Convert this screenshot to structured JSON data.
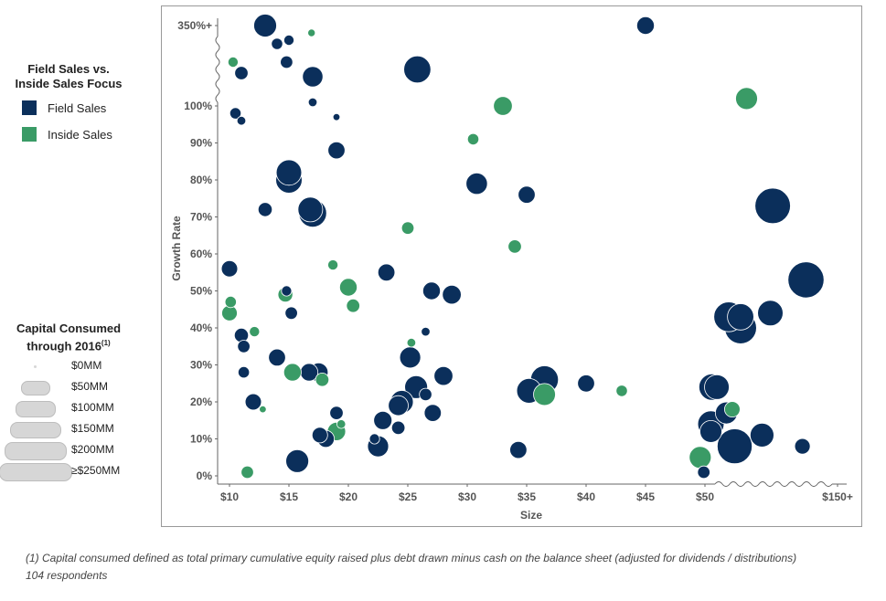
{
  "legend": {
    "color_title_1": "Field Sales vs.",
    "color_title_2": "Inside Sales Focus",
    "field_label": "Field Sales",
    "inside_label": "Inside Sales",
    "size_title_1": "Capital Consumed",
    "size_title_2": "through 2016",
    "size_title_sup": "(1)",
    "size_labels": [
      "$0MM",
      "$50MM",
      "$100MM",
      "$150MM",
      "$200MM",
      "≥$250MM"
    ]
  },
  "colors": {
    "field": "#0b2f5b",
    "inside": "#3a9b66",
    "size_legend": "#d6d6d6"
  },
  "footnote": {
    "line1": "(1)    Capital consumed defined as total primary cumulative equity raised plus debt drawn minus cash on the balance sheet (adjusted for dividends / distributions)",
    "line2": "104 respondents"
  },
  "chart_data": {
    "type": "scatter",
    "xlabel": "Size",
    "ylabel": "Growth Rate",
    "x_ticks": [
      "$10",
      "$15",
      "$20",
      "$25",
      "$30",
      "$35",
      "$40",
      "$45",
      "$50",
      "$150+"
    ],
    "y_ticks": [
      "0%",
      "10%",
      "20%",
      "30%",
      "40%",
      "50%",
      "60%",
      "70%",
      "80%",
      "90%",
      "100%",
      "350%+"
    ],
    "series": [
      {
        "name": "Field Sales",
        "points": [
          [
            13,
            350,
            110
          ],
          [
            45,
            350,
            60
          ],
          [
            14,
            345,
            20
          ],
          [
            15,
            346,
            15
          ],
          [
            14.8,
            340,
            25
          ],
          [
            11,
            337,
            30
          ],
          [
            17,
            336,
            85
          ],
          [
            25.8,
            338,
            160
          ],
          [
            17,
            101,
            10
          ],
          [
            19,
            97,
            5
          ],
          [
            10.5,
            98,
            20
          ],
          [
            11,
            96,
            10
          ],
          [
            19,
            88,
            55
          ],
          [
            15,
            82,
            140
          ],
          [
            15,
            80,
            150
          ],
          [
            30.8,
            79,
            95
          ],
          [
            35,
            76,
            55
          ],
          [
            13,
            72,
            35
          ],
          [
            16.8,
            72,
            130
          ],
          [
            17,
            71,
            170
          ],
          [
            55.7,
            73,
            290
          ],
          [
            10,
            56,
            50
          ],
          [
            23.2,
            55,
            55
          ],
          [
            58.5,
            53,
            300
          ],
          [
            14.8,
            50,
            15
          ],
          [
            27,
            50,
            60
          ],
          [
            28.7,
            49,
            70
          ],
          [
            15.2,
            44,
            25
          ],
          [
            52,
            43,
            200
          ],
          [
            53,
            43,
            150
          ],
          [
            53,
            40,
            230
          ],
          [
            55.5,
            44,
            140
          ],
          [
            11,
            38,
            35
          ],
          [
            26.5,
            39,
            10
          ],
          [
            11.2,
            35,
            25
          ],
          [
            14,
            32,
            55
          ],
          [
            25.2,
            32,
            90
          ],
          [
            16.7,
            28,
            60
          ],
          [
            17.5,
            28,
            70
          ],
          [
            11.2,
            28,
            20
          ],
          [
            28,
            27,
            70
          ],
          [
            25.7,
            24,
            110
          ],
          [
            26.5,
            22,
            25
          ],
          [
            35.2,
            23,
            130
          ],
          [
            36.5,
            26,
            170
          ],
          [
            40,
            25,
            55
          ],
          [
            50.6,
            24,
            150
          ],
          [
            51,
            24,
            130
          ],
          [
            12,
            20,
            50
          ],
          [
            24.5,
            20,
            110
          ],
          [
            24.2,
            19,
            80
          ],
          [
            27.1,
            17,
            55
          ],
          [
            19,
            17,
            30
          ],
          [
            51.8,
            17,
            100
          ],
          [
            22.9,
            15,
            65
          ],
          [
            24.2,
            13,
            30
          ],
          [
            50.5,
            14,
            150
          ],
          [
            50.5,
            12,
            100
          ],
          [
            54.8,
            11,
            120
          ],
          [
            17.6,
            11,
            45
          ],
          [
            18.1,
            10,
            55
          ],
          [
            22.2,
            10,
            15
          ],
          [
            22.5,
            8,
            90
          ],
          [
            52.5,
            8,
            280
          ],
          [
            34.3,
            7,
            55
          ],
          [
            58.2,
            8,
            45
          ],
          [
            15.7,
            4,
            110
          ],
          [
            49.9,
            1,
            25
          ]
        ]
      },
      {
        "name": "Inside Sales",
        "points": [
          [
            16.9,
            348,
            6
          ],
          [
            10.3,
            340,
            15
          ],
          [
            33,
            100,
            70
          ],
          [
            53.5,
            102,
            100
          ],
          [
            30.5,
            91,
            20
          ],
          [
            25,
            67,
            25
          ],
          [
            34,
            62,
            30
          ],
          [
            18.7,
            57,
            15
          ],
          [
            14.7,
            49,
            40
          ],
          [
            20,
            51,
            60
          ],
          [
            20.4,
            46,
            30
          ],
          [
            10.1,
            47,
            20
          ],
          [
            10,
            44,
            45
          ],
          [
            12.1,
            39,
            15
          ],
          [
            25.3,
            36,
            10
          ],
          [
            15.3,
            28,
            60
          ],
          [
            17.8,
            26,
            30
          ],
          [
            36.5,
            22,
            100
          ],
          [
            43,
            23,
            20
          ],
          [
            52.3,
            18,
            45
          ],
          [
            12.8,
            18,
            5
          ],
          [
            19.4,
            14,
            10
          ],
          [
            19,
            12,
            65
          ],
          [
            49.6,
            5,
            100
          ],
          [
            11.5,
            1,
            25
          ]
        ]
      }
    ],
    "size_legend_values": [
      0,
      50,
      100,
      150,
      200,
      250
    ],
    "grid": false
  }
}
